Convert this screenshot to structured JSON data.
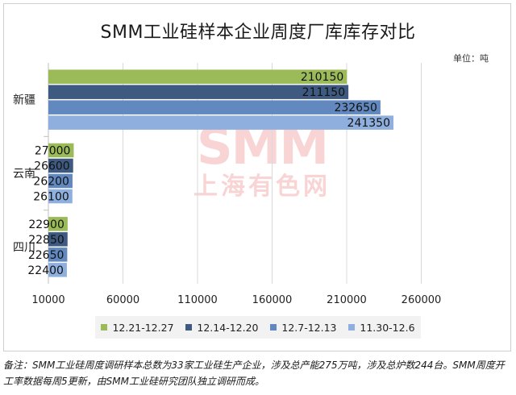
{
  "title": "SMM工业硅样本企业周度厂库库存对比",
  "unit": "单位：吨",
  "watermark": {
    "line1": "SMM",
    "line2": "上海有色网"
  },
  "note": "备注：SMM工业硅周度调研样本总数为33家工业硅生产企业，涉及总产能275万吨，涉及总炉数244台。SMM周度开工率数据每周5更新，由SMM工业硅研究团队独立调研而成。",
  "chart_data": {
    "type": "bar",
    "orientation": "horizontal",
    "title": "SMM工业硅样本企业周度厂库库存对比",
    "unit": "吨",
    "categories": [
      "新疆",
      "云南",
      "四川"
    ],
    "series": [
      {
        "name": "12.21-12.27",
        "color": "#9bbb59",
        "values": [
          210150,
          27000,
          22900
        ]
      },
      {
        "name": "12.14-12.20",
        "color": "#3f5a80",
        "values": [
          211150,
          26600,
          22850
        ]
      },
      {
        "name": "12.7-12.13",
        "color": "#6289bf",
        "values": [
          232650,
          26200,
          22650
        ]
      },
      {
        "name": "11.30-12.6",
        "color": "#8fb0de",
        "values": [
          241350,
          26100,
          22400
        ]
      }
    ],
    "xlim": [
      10000,
      290000
    ],
    "xticks": [
      10000,
      60000,
      110000,
      160000,
      210000,
      260000
    ],
    "grid": true,
    "legend_position": "bottom"
  }
}
